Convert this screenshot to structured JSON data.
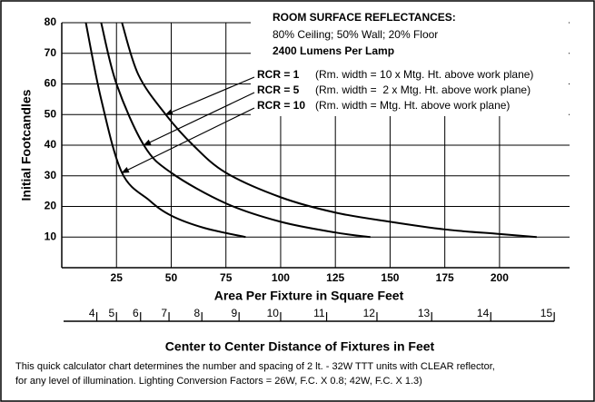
{
  "chart_data": {
    "type": "line",
    "title": "ROOM SURFACE REFLECTANCES:",
    "subtitle": "80% Ceiling; 50% Wall; 20% Floor",
    "note": "2400 Lumens Per Lamp",
    "xlabel": "Area Per Fixture in Square Feet",
    "ylabel": "Initial Footcandles",
    "x2label": "Center to Center Distance of Fixtures in Feet",
    "x2_scale": "square",
    "x2ticks": [
      4,
      5,
      6,
      7,
      8,
      9,
      10,
      11,
      12,
      13,
      14,
      15
    ],
    "footnote": [
      "This quick calculator chart determines the number and spacing of 2 lt. - 32W TTT units with CLEAR reflector,",
      "for any level of illumination. Lighting Conversion Factors = 26W, F.C. X 0.8; 42W, F.C. X 1.3)"
    ],
    "xlim": [
      0,
      232
    ],
    "ylim": [
      0,
      80
    ],
    "xticks": [
      25,
      50,
      75,
      100,
      125,
      150,
      175,
      200
    ],
    "yticks": [
      10,
      20,
      30,
      40,
      50,
      60,
      70,
      80
    ],
    "grid": true,
    "series": [
      {
        "name": "RCR = 1",
        "description": "(Rm. width = 10 x Mtg. Ht. above work plane)",
        "color": "#000000",
        "x": [
          27.5,
          35,
          47.5,
          60,
          75,
          100,
          125,
          150,
          175,
          200,
          217
        ],
        "values": [
          80,
          63,
          50,
          40,
          31,
          23,
          18,
          15,
          12.5,
          11,
          10
        ]
      },
      {
        "name": "RCR = 5",
        "description": "(Rm. width =  2 x Mtg. Ht. above work plane)",
        "color": "#000000",
        "x": [
          18,
          25,
          37.5,
          50,
          75,
          100,
          125,
          141
        ],
        "values": [
          80,
          60,
          40,
          31,
          21,
          15,
          11.5,
          10
        ]
      },
      {
        "name": "RCR = 10",
        "description": "(Rm. width = Mtg. Ht. above work plane)",
        "color": "#000000",
        "x": [
          11,
          18,
          27.5,
          40,
          50,
          65,
          84
        ],
        "values": [
          80,
          55,
          31,
          22,
          17,
          13,
          10
        ]
      }
    ]
  }
}
